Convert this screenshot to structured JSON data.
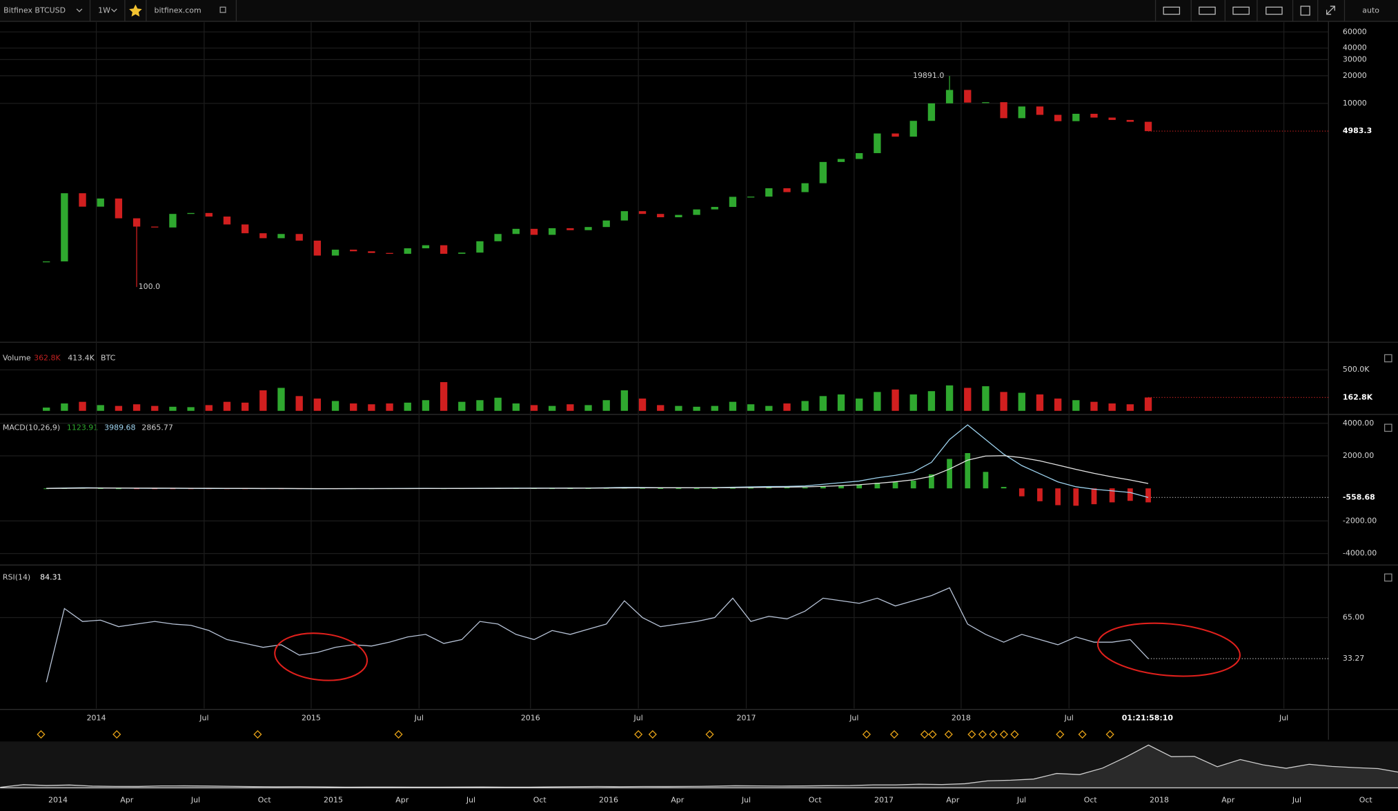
{
  "toolbar": {
    "symbol": "Bitfinex BTCUSD",
    "interval": "1W",
    "source": "bitfinex.com",
    "scale": "auto"
  },
  "price_pane": {
    "type": "candlestick",
    "log_scale": true,
    "ylim": [
      25.6,
      76400
    ],
    "yticks": [
      60000,
      40000,
      30000,
      20000,
      10000
    ],
    "high": {
      "value": 19891,
      "label": "19891.0"
    },
    "low": {
      "value": 100,
      "label": "100.0"
    },
    "last": {
      "value": 4983.3,
      "label": "4983.3"
    },
    "up_color": "#2fa82f",
    "down_color": "#d11f1f",
    "closes": [
      190,
      1050,
      750,
      920,
      560,
      455,
      445,
      625,
      640,
      585,
      480,
      385,
      340,
      378,
      320,
      220,
      255,
      245,
      235,
      230,
      264,
      285,
      230,
      237,
      315,
      378,
      430,
      370,
      437,
      416,
      450,
      530,
      670,
      625,
      575,
      610,
      700,
      745,
      960,
      965,
      1190,
      1080,
      1350,
      2300,
      2480,
      2870,
      4700,
      4340,
      6450,
      10000,
      14000,
      10200,
      10300,
      6900,
      9250,
      7500,
      6400,
      7700,
      7000,
      6600,
      6300,
      4983.3
    ]
  },
  "volume_pane": {
    "title": "Volume",
    "readouts": [
      "362.8K",
      "413.4K",
      "BTC"
    ],
    "ylim": [
      0,
      771000
    ],
    "yticks": [
      {
        "value": 500000,
        "label": "500.0K"
      },
      {
        "value": 162800,
        "label": "162.8K"
      }
    ],
    "values": [
      40000,
      90000,
      110000,
      70000,
      60000,
      80000,
      60000,
      50000,
      45000,
      70000,
      110000,
      100000,
      250000,
      280000,
      180000,
      150000,
      120000,
      90000,
      80000,
      90000,
      100000,
      130000,
      350000,
      110000,
      130000,
      160000,
      90000,
      70000,
      60000,
      80000,
      70000,
      130000,
      250000,
      150000,
      70000,
      60000,
      50000,
      60000,
      110000,
      80000,
      60000,
      90000,
      120000,
      180000,
      200000,
      150000,
      230000,
      260000,
      200000,
      240000,
      310000,
      280000,
      300000,
      230000,
      220000,
      200000,
      150000,
      130000,
      110000,
      90000,
      80000,
      162800
    ]
  },
  "macd_pane": {
    "title": "MACD(10,26,9)",
    "readouts": [
      "1123.91",
      "3989.68",
      "2865.77"
    ],
    "ylim": [
      -4380,
      4270
    ],
    "yticks": [
      {
        "value": 4000,
        "label": "4000.00"
      },
      {
        "value": 2000,
        "label": "2000.00"
      },
      {
        "value": -558.68,
        "label": "-558.68"
      },
      {
        "value": -2000,
        "label": "-2000.00"
      },
      {
        "value": -4000,
        "label": "-4000.00"
      }
    ],
    "macd": [
      0,
      20,
      40,
      30,
      20,
      10,
      5,
      5,
      0,
      -5,
      -10,
      -10,
      -15,
      -15,
      -20,
      -25,
      -20,
      -15,
      -15,
      -10,
      -5,
      0,
      -5,
      0,
      5,
      10,
      15,
      15,
      15,
      20,
      25,
      40,
      60,
      55,
      45,
      40,
      40,
      50,
      70,
      90,
      110,
      120,
      150,
      250,
      350,
      450,
      650,
      800,
      1000,
      1600,
      3000,
      3900,
      3000,
      2100,
      1400,
      900,
      400,
      100,
      -50,
      -150,
      -250,
      -558.68
    ],
    "signal": [
      0,
      5,
      15,
      20,
      20,
      18,
      15,
      12,
      9,
      6,
      3,
      0,
      -3,
      -6,
      -9,
      -12,
      -14,
      -15,
      -15,
      -14,
      -12,
      -9,
      -8,
      -6,
      -4,
      -1,
      2,
      5,
      8,
      11,
      14,
      19,
      27,
      33,
      36,
      37,
      38,
      40,
      46,
      55,
      66,
      77,
      92,
      123,
      168,
      224,
      309,
      407,
      525,
      740,
      1192,
      1733,
      1987,
      2009,
      1887,
      1690,
      1432,
      1166,
      923,
      708,
      516,
      300
    ]
  },
  "rsi_pane": {
    "title": "RSI(14)",
    "readout": "84.31",
    "ylim": [
      -5.3,
      101.5
    ],
    "yticks": [
      {
        "value": 65,
        "label": "65.00"
      },
      {
        "value": 33.27,
        "label": "33.27"
      }
    ],
    "values": [
      15,
      72,
      62,
      63,
      58,
      60,
      62,
      60,
      59,
      55,
      48,
      45,
      42,
      44,
      36,
      38,
      42,
      44,
      43,
      46,
      50,
      52,
      45,
      48,
      62,
      60,
      52,
      48,
      55,
      52,
      56,
      60,
      78,
      65,
      58,
      60,
      62,
      65,
      80,
      62,
      66,
      64,
      70,
      80,
      78,
      76,
      80,
      74,
      78,
      82,
      88,
      60,
      52,
      46,
      52,
      48,
      44,
      50,
      46,
      46,
      48,
      33.27
    ]
  },
  "time_axis": {
    "labels": [
      "2014",
      "Jul",
      "2015",
      "Jul",
      "2016",
      "Jul",
      "2017",
      "Jul",
      "2018",
      "Jul",
      "01:21:58:10",
      "Jul"
    ]
  },
  "navigator": {
    "labels": [
      "2014",
      "Apr",
      "Jul",
      "Oct",
      "2015",
      "Apr",
      "Jul",
      "Oct",
      "2016",
      "Apr",
      "Jul",
      "Oct",
      "2017",
      "Apr",
      "Jul",
      "Oct",
      "2018",
      "Apr",
      "Jul",
      "Oct"
    ]
  }
}
